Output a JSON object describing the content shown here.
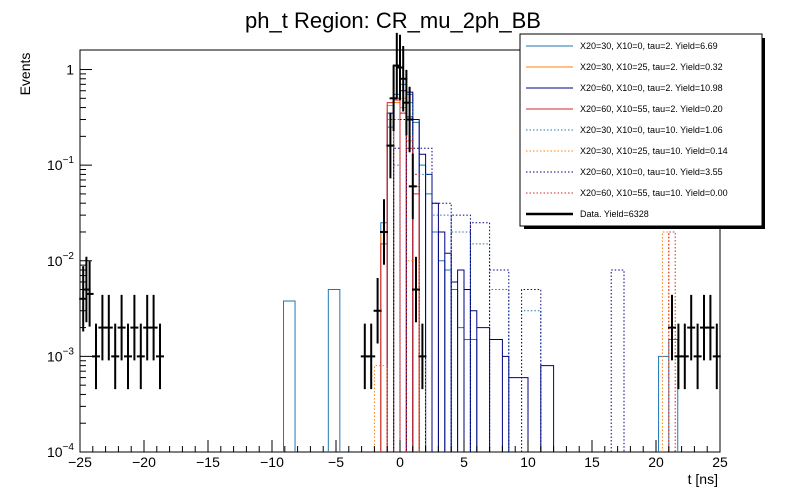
{
  "chart_data": {
    "type": "step-histogram",
    "title": "ph_t Region: CR_mu_2ph_BB",
    "xlabel": "t [ns]",
    "ylabel": "Events",
    "xlim": [
      -25,
      25
    ],
    "ylim": [
      0.0001,
      1.6
    ],
    "yscale": "log",
    "x_ticks": [
      {
        "value": -25,
        "label": "−25"
      },
      {
        "value": -20,
        "label": "−20"
      },
      {
        "value": -15,
        "label": "−15"
      },
      {
        "value": -10,
        "label": "−10"
      },
      {
        "value": -5,
        "label": "−5"
      },
      {
        "value": 0,
        "label": "0"
      },
      {
        "value": 5,
        "label": "5"
      },
      {
        "value": 10,
        "label": "10"
      },
      {
        "value": 15,
        "label": "15"
      },
      {
        "value": 20,
        "label": "20"
      },
      {
        "value": 25,
        "label": "25"
      }
    ],
    "y_ticks": [
      {
        "value": 0.0001,
        "base": "10",
        "exp": "−4"
      },
      {
        "value": 0.001,
        "base": "10",
        "exp": "−3"
      },
      {
        "value": 0.01,
        "base": "10",
        "exp": "−2"
      },
      {
        "value": 0.1,
        "base": "10",
        "exp": "−1"
      },
      {
        "value": 1,
        "base": "1",
        "exp": ""
      }
    ],
    "series": [
      {
        "name": "X20=30, X10=0, tau=2. Yield=6.69",
        "color": "#1f77b4",
        "style": "solid",
        "bins": [
          [
            -9.1,
            -8.2,
            0.0038
          ],
          [
            -5.6,
            -4.7,
            0.005
          ],
          [
            -1.5,
            -1.0,
            0.025
          ],
          [
            -1.0,
            -0.5,
            0.25
          ],
          [
            -0.5,
            0.0,
            0.55
          ],
          [
            0.0,
            0.5,
            0.7
          ],
          [
            0.5,
            1.0,
            0.55
          ],
          [
            1.0,
            1.5,
            0.28
          ],
          [
            1.5,
            2.0,
            0.1
          ],
          [
            2.0,
            2.5,
            0.05
          ],
          [
            2.5,
            3.0,
            0.02
          ],
          [
            3.0,
            3.5,
            0.01
          ],
          [
            3.5,
            4.0,
            0.008
          ],
          [
            4.0,
            4.5,
            0.005
          ],
          [
            4.5,
            5.0,
            0.002
          ],
          [
            5.0,
            6.0,
            0.0015
          ],
          [
            20.2,
            21.0,
            0.001
          ],
          [
            21.0,
            21.7,
            0.0015
          ]
        ]
      },
      {
        "name": "X20=30, X10=25, tau=2. Yield=0.32",
        "color": "#ff7f0e",
        "style": "solid",
        "bins": [
          [
            -1.5,
            -1.0,
            0.02
          ],
          [
            -1.0,
            -0.5,
            0.42
          ],
          [
            -0.5,
            0.0,
            0.45
          ],
          [
            0.0,
            0.5,
            0.4
          ],
          [
            0.5,
            1.0,
            0.18
          ],
          [
            1.0,
            1.5,
            0.06
          ]
        ]
      },
      {
        "name": "X20=60, X10=0, tau=2. Yield=10.98",
        "color": "#000080",
        "style": "solid",
        "bins": [
          [
            -1.0,
            -0.5,
            0.35
          ],
          [
            -0.5,
            0.0,
            0.5
          ],
          [
            0.0,
            0.5,
            0.6
          ],
          [
            0.5,
            1.0,
            0.58
          ],
          [
            1.0,
            1.5,
            0.3
          ],
          [
            1.5,
            2.0,
            0.13
          ],
          [
            2.0,
            2.5,
            0.08
          ],
          [
            2.5,
            3.0,
            0.04
          ],
          [
            3.0,
            3.5,
            0.02
          ],
          [
            3.5,
            4.0,
            0.012
          ],
          [
            4.0,
            4.5,
            0.006
          ],
          [
            4.5,
            5.0,
            0.008
          ],
          [
            5.0,
            5.5,
            0.005
          ],
          [
            5.5,
            6.0,
            0.003
          ],
          [
            6.0,
            7.0,
            0.002
          ],
          [
            7.0,
            8.0,
            0.0015
          ],
          [
            8.0,
            8.5,
            0.001
          ],
          [
            8.5,
            10.0,
            0.0006
          ],
          [
            11.0,
            12.0,
            0.0008
          ]
        ]
      },
      {
        "name": "X20=60, X10=55, tau=2. Yield=0.20",
        "color": "#d62728",
        "style": "solid",
        "bins": [
          [
            -1.5,
            -1.0,
            0.015
          ],
          [
            -1.0,
            -0.5,
            0.45
          ],
          [
            -0.5,
            0.0,
            0.48
          ],
          [
            0.0,
            0.5,
            0.35
          ],
          [
            0.5,
            1.0,
            0.15
          ],
          [
            1.0,
            1.5,
            0.05
          ]
        ]
      },
      {
        "name": "X20=30, X10=0, tau=10. Yield=1.06",
        "color": "#1f77b4",
        "style": "dotted",
        "bins": [
          [
            -0.5,
            0.0,
            0.1
          ],
          [
            0.0,
            0.5,
            0.4
          ],
          [
            0.5,
            1.0,
            0.45
          ],
          [
            1.0,
            2.5,
            0.08
          ],
          [
            2.5,
            4.0,
            0.03
          ],
          [
            4.0,
            5.5,
            0.02
          ],
          [
            5.5,
            7.0,
            0.015
          ],
          [
            7.0,
            8.5,
            0.005
          ],
          [
            9.5,
            11.0,
            0.003
          ]
        ]
      },
      {
        "name": "X20=30, X10=25, tau=10. Yield=0.14",
        "color": "#ff7f0e",
        "style": "dotted",
        "bins": [
          [
            -2.0,
            -1.0,
            0.0008
          ],
          [
            -0.5,
            0.5,
            0.5
          ],
          [
            0.5,
            1.5,
            0.01
          ],
          [
            1.5,
            2.0,
            0.001
          ],
          [
            20.5,
            21.0,
            0.02
          ]
        ]
      },
      {
        "name": "X20=60, X10=0, tau=10. Yield=3.55",
        "color": "#000080",
        "style": "dotted",
        "bins": [
          [
            -0.5,
            0.0,
            0.15
          ],
          [
            0.0,
            0.5,
            0.3
          ],
          [
            0.5,
            1.0,
            0.32
          ],
          [
            1.0,
            2.5,
            0.15
          ],
          [
            2.5,
            4.0,
            0.04
          ],
          [
            4.0,
            5.5,
            0.03
          ],
          [
            5.5,
            7.0,
            0.025
          ],
          [
            7.0,
            8.5,
            0.008
          ],
          [
            9.5,
            11.0,
            0.005
          ],
          [
            16.5,
            17.5,
            0.008
          ]
        ]
      },
      {
        "name": "X20=60, X10=55, tau=10. Yield=0.00",
        "color": "#d62728",
        "style": "dotted",
        "bins": [
          [
            -1.0,
            0.0,
            0.3
          ],
          [
            0.0,
            0.5,
            0.35
          ],
          [
            0.5,
            1.0,
            0.2
          ],
          [
            1.0,
            1.5,
            0.08
          ],
          [
            21.0,
            21.5,
            0.02
          ]
        ]
      }
    ],
    "data": {
      "name": "Data. Yield=6328",
      "color": "#000000",
      "points": [
        [
          -24.75,
          0.004
        ],
        [
          -24.5,
          0.005
        ],
        [
          -24.25,
          0.0045
        ],
        [
          -23.75,
          0.001
        ],
        [
          -23.25,
          0.002
        ],
        [
          -22.75,
          0.002
        ],
        [
          -22.25,
          0.001
        ],
        [
          -21.75,
          0.002
        ],
        [
          -21.25,
          0.001
        ],
        [
          -20.75,
          0.002
        ],
        [
          -20.25,
          0.001
        ],
        [
          -19.75,
          0.002
        ],
        [
          -19.25,
          0.002
        ],
        [
          -18.75,
          0.001
        ],
        [
          -2.75,
          0.001
        ],
        [
          -2.25,
          0.001
        ],
        [
          -1.75,
          0.003
        ],
        [
          -1.25,
          0.02
        ],
        [
          -0.75,
          0.16
        ],
        [
          -0.5,
          0.5
        ],
        [
          -0.25,
          1.1
        ],
        [
          0.0,
          1.05
        ],
        [
          0.25,
          0.8
        ],
        [
          0.5,
          0.45
        ],
        [
          0.75,
          0.3
        ],
        [
          1.0,
          0.06
        ],
        [
          1.25,
          0.005
        ],
        [
          1.75,
          0.001
        ],
        [
          21.25,
          0.002
        ],
        [
          21.75,
          0.001
        ],
        [
          22.25,
          0.001
        ],
        [
          22.75,
          0.002
        ],
        [
          23.25,
          0.001
        ],
        [
          23.75,
          0.002
        ],
        [
          24.25,
          0.002
        ],
        [
          24.75,
          0.001
        ]
      ]
    }
  }
}
